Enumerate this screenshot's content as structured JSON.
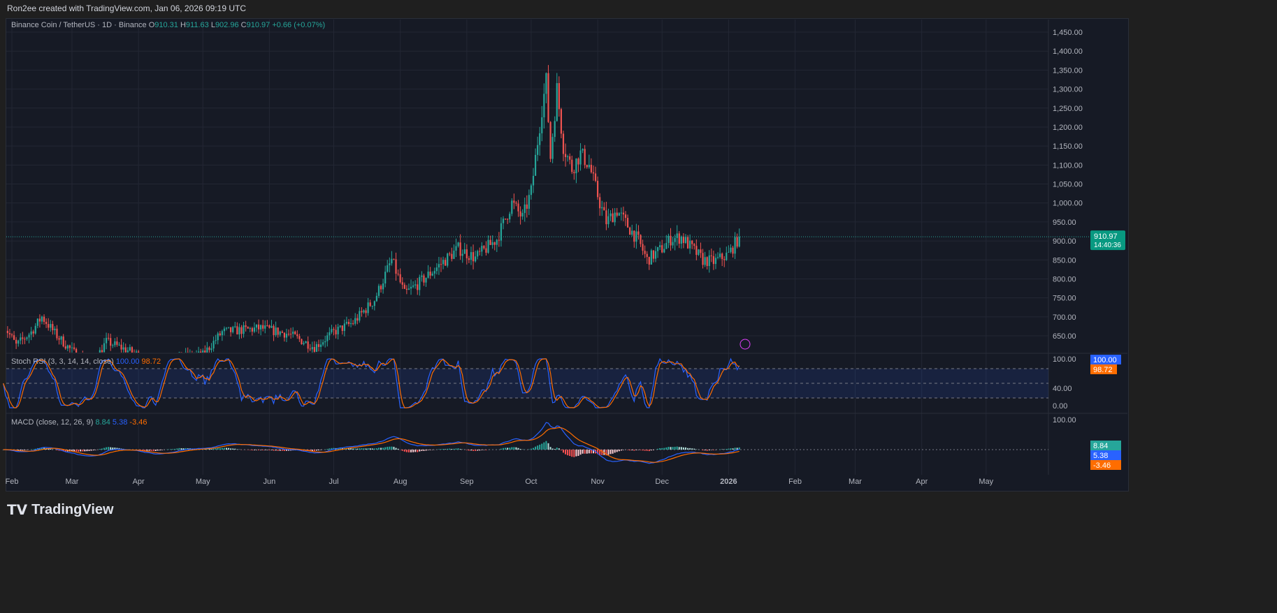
{
  "header": {
    "credit": "Ron2ee created with TradingView.com, Jan 06, 2026 09:19 UTC"
  },
  "legend": {
    "symbol": "Binance Coin / TetherUS · 1D · Binance",
    "o_label": "O",
    "o": "910.31",
    "h_label": "H",
    "h": "911.63",
    "l_label": "L",
    "l": "902.96",
    "c_label": "C",
    "c": "910.97",
    "change": "+0.66 (+0.07%)"
  },
  "stoch": {
    "label": "Stoch RSI (3, 3, 14, 14, close)",
    "k": "100.00",
    "d": "98.72",
    "ticks": [
      "100.00",
      "40.00",
      "0.00"
    ]
  },
  "macd": {
    "label": "MACD (close, 12, 26, 9)",
    "hist": "8.84",
    "macd": "5.38",
    "signal": "-3.46",
    "top_tick": "100.00"
  },
  "price_tag": {
    "price": "910.97",
    "countdown": "14:40:36"
  },
  "brand": "TradingView",
  "colors": {
    "up": "#26a69a",
    "down": "#ef5350",
    "k": "#2962ff",
    "d": "#ff6d00",
    "bg": "#161a25",
    "grid": "#232734"
  },
  "chart_data": {
    "type": "candlestick",
    "title": "Binance Coin / TetherUS · 1D · Binance",
    "y_ticks": [
      650,
      700,
      750,
      800,
      850,
      900,
      950,
      1000,
      1050,
      1100,
      1150,
      1200,
      1250,
      1300,
      1350,
      1400,
      1450
    ],
    "ylim": [
      605,
      1480
    ],
    "x_ticks": [
      "Feb",
      "Mar",
      "Apr",
      "May",
      "Jun",
      "Jul",
      "Aug",
      "Sep",
      "Oct",
      "Nov",
      "Dec",
      "2026",
      "Feb",
      "Mar",
      "Apr",
      "May"
    ],
    "approx_close_path": [
      [
        "2025-01-28",
        680
      ],
      [
        "2025-02-03",
        625
      ],
      [
        "2025-02-10",
        660
      ],
      [
        "2025-02-15",
        700
      ],
      [
        "2025-02-22",
        650
      ],
      [
        "2025-03-01",
        610
      ],
      [
        "2025-03-10",
        570
      ],
      [
        "2025-03-17",
        635
      ],
      [
        "2025-04-01",
        600
      ],
      [
        "2025-04-07",
        560
      ],
      [
        "2025-04-20",
        595
      ],
      [
        "2025-05-01",
        600
      ],
      [
        "2025-05-10",
        660
      ],
      [
        "2025-05-28",
        670
      ],
      [
        "2025-06-10",
        655
      ],
      [
        "2025-06-22",
        620
      ],
      [
        "2025-07-01",
        660
      ],
      [
        "2025-07-10",
        685
      ],
      [
        "2025-07-20",
        745
      ],
      [
        "2025-07-28",
        850
      ],
      [
        "2025-08-03",
        760
      ],
      [
        "2025-08-10",
        790
      ],
      [
        "2025-08-20",
        840
      ],
      [
        "2025-08-28",
        880
      ],
      [
        "2025-09-05",
        855
      ],
      [
        "2025-09-15",
        905
      ],
      [
        "2025-09-22",
        1000
      ],
      [
        "2025-09-27",
        960
      ],
      [
        "2025-10-01",
        1030
      ],
      [
        "2025-10-06",
        1250
      ],
      [
        "2025-10-08",
        1320
      ],
      [
        "2025-10-10",
        1120
      ],
      [
        "2025-10-13",
        1300
      ],
      [
        "2025-10-16",
        1150
      ],
      [
        "2025-10-20",
        1090
      ],
      [
        "2025-10-24",
        1130
      ],
      [
        "2025-10-28",
        1100
      ],
      [
        "2025-11-02",
        1000
      ],
      [
        "2025-11-05",
        950
      ],
      [
        "2025-11-10",
        980
      ],
      [
        "2025-11-20",
        900
      ],
      [
        "2025-11-24",
        850
      ],
      [
        "2025-12-01",
        880
      ],
      [
        "2025-12-05",
        905
      ],
      [
        "2025-12-10",
        910
      ],
      [
        "2025-12-15",
        880
      ],
      [
        "2025-12-20",
        850
      ],
      [
        "2025-12-25",
        845
      ],
      [
        "2026-01-01",
        865
      ],
      [
        "2026-01-06",
        910.97
      ]
    ],
    "last_close": 910.97,
    "stoch_levels": [
      80,
      50,
      20
    ]
  }
}
